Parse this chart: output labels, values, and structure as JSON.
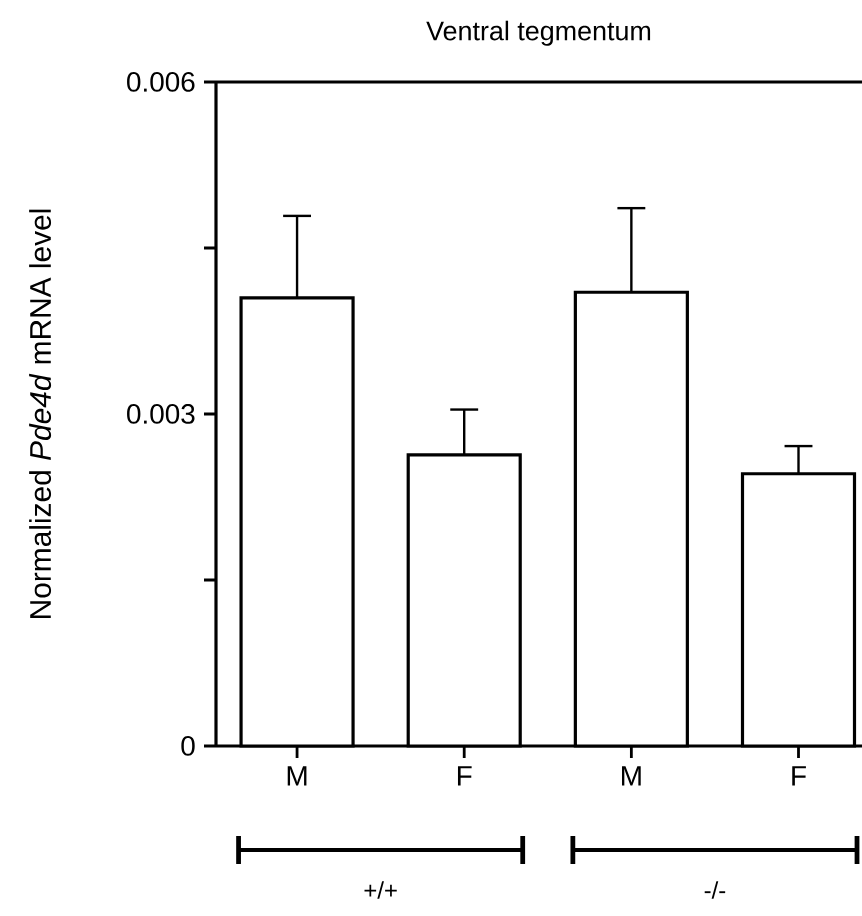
{
  "chart_data": {
    "type": "bar",
    "title": "Ventral tegmentum",
    "ylabel": "Normalized *Pde4d* mRNA level",
    "categories": [
      "M",
      "F",
      "M",
      "F"
    ],
    "values": [
      0.00405,
      0.00263,
      0.0041,
      0.00246
    ],
    "errors": [
      [
        0.00405,
        0.00479
      ],
      [
        0.00263,
        0.00304
      ],
      [
        0.0041,
        0.00486
      ],
      [
        0.00246,
        0.00271
      ]
    ],
    "color": "#ffffff",
    "ylim": [
      0,
      0.006
    ],
    "yticks": [
      0,
      {
        "value": 0.0015,
        "label": null
      },
      0.003,
      {
        "value": 0.0045,
        "label": null
      },
      0.006
    ],
    "annotations": [
      "+/+",
      "-/-"
    ],
    "grid": false,
    "legend": false
  }
}
